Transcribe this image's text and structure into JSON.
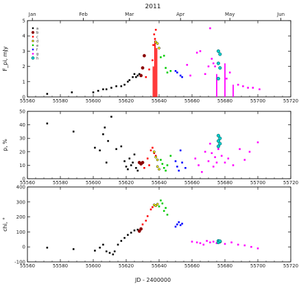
{
  "chart_data": {
    "type": "scatter",
    "title": "2011",
    "xlabel": "JD - 2400000",
    "xlim": [
      55560,
      55720
    ],
    "x_ticks": [
      55560,
      55580,
      55600,
      55620,
      55640,
      55660,
      55680,
      55700,
      55720
    ],
    "top_axis_months": [
      {
        "label": "Jan",
        "jd": 55563
      },
      {
        "label": "Feb",
        "jd": 55594
      },
      {
        "label": "Mar",
        "jd": 55622
      },
      {
        "label": "Apr",
        "jd": 55653
      },
      {
        "label": "May",
        "jd": 55683
      },
      {
        "label": "Jun",
        "jd": 55714
      }
    ],
    "legend_entries": [
      "a",
      "b",
      "c",
      "d",
      "e",
      "f",
      "g",
      "h"
    ],
    "colors": {
      "a": "#000000",
      "b": "#8b0000",
      "c": "#ff0000",
      "d": "#ffff00",
      "e": "#00cc00",
      "f": "#0000ff",
      "g": "#ff00ff",
      "h": "#00cccc"
    },
    "panels": [
      {
        "ylabel": "F_pi, mJy",
        "ylim": [
          0,
          5
        ],
        "y_ticks": [
          0,
          1,
          2,
          3,
          4,
          5
        ],
        "series": [
          {
            "name": "a",
            "points": [
              [
                55572,
                0.2
              ],
              [
                55587,
                0.3
              ],
              [
                55600,
                0.3
              ],
              [
                55603,
                0.4
              ],
              [
                55606,
                0.5
              ],
              [
                55608,
                0.5
              ],
              [
                55611,
                0.6
              ],
              [
                55614,
                0.7
              ],
              [
                55617,
                0.7
              ],
              [
                55619,
                0.8
              ],
              [
                55621,
                1.0
              ],
              [
                55622,
                1.1
              ],
              [
                55624,
                1.3
              ],
              [
                55625,
                1.5
              ],
              [
                55626,
                1.3
              ],
              [
                55627,
                1.4
              ],
              [
                55628,
                1.5
              ]
            ]
          },
          {
            "name": "b",
            "points": [
              [
                55629,
                1.4
              ],
              [
                55630,
                1.9
              ],
              [
                55631,
                2.7
              ]
            ]
          },
          {
            "name": "c",
            "points": [
              [
                55632,
                1.3
              ],
              [
                55634,
                1.8
              ],
              [
                55636,
                2.4
              ],
              [
                55636.5,
                3.4
              ],
              [
                55637,
                4.1
              ],
              [
                55637.5,
                3.8
              ],
              [
                55638,
                4.4
              ]
            ],
            "bars": [
              [
                55636.5,
                2.0
              ],
              [
                55637.5,
                3.7
              ],
              [
                55638.5,
                3.2
              ]
            ]
          },
          {
            "name": "d",
            "points": [
              [
                55638,
                3.6
              ],
              [
                55639,
                3.5
              ],
              [
                55640,
                3.2
              ]
            ]
          },
          {
            "name": "e",
            "points": [
              [
                55641,
                2.6
              ],
              [
                55643,
                2.7
              ],
              [
                55644,
                1.9
              ],
              [
                55645,
                1.6
              ],
              [
                55647,
                1.7
              ]
            ]
          },
          {
            "name": "f",
            "points": [
              [
                55650,
                1.7
              ],
              [
                55651,
                1.6
              ],
              [
                55653,
                1.4
              ],
              [
                55654,
                1.3
              ]
            ]
          },
          {
            "name": "g",
            "points": [
              [
                55657,
                2.1
              ],
              [
                55659,
                1.4
              ],
              [
                55663,
                2.9
              ],
              [
                55665,
                3.0
              ],
              [
                55668,
                1.5
              ],
              [
                55670,
                2.0
              ],
              [
                55671,
                4.5
              ],
              [
                55672,
                2.5
              ],
              [
                55673,
                2.2
              ],
              [
                55674,
                2.0
              ],
              [
                55681,
                1.2
              ],
              [
                55683,
                1.6
              ],
              [
                55688,
                0.8
              ],
              [
                55691,
                0.7
              ],
              [
                55694,
                0.6
              ],
              [
                55697,
                0.6
              ],
              [
                55701,
                0.5
              ]
            ],
            "bars": [
              [
                55675,
                1.5
              ],
              [
                55680,
                2.2
              ],
              [
                55685,
                0.8
              ]
            ]
          },
          {
            "name": "h",
            "points": [
              [
                55676,
                3.0
              ],
              [
                55677,
                2.8
              ],
              [
                55676,
                2.2
              ],
              [
                55677,
                1.9
              ],
              [
                55676,
                1.2
              ]
            ]
          }
        ]
      },
      {
        "ylabel": "p, %",
        "ylim": [
          0,
          50
        ],
        "y_ticks": [
          0,
          10,
          20,
          30,
          40,
          50
        ],
        "series": [
          {
            "name": "a",
            "points": [
              [
                55572,
                41
              ],
              [
                55588,
                35
              ],
              [
                55601,
                23
              ],
              [
                55604,
                21
              ],
              [
                55606,
                33
              ],
              [
                55607,
                38
              ],
              [
                55608,
                12
              ],
              [
                55609,
                28
              ],
              [
                55611,
                46
              ],
              [
                55614,
                22
              ],
              [
                55617,
                24
              ],
              [
                55619,
                13
              ],
              [
                55620,
                9
              ],
              [
                55621,
                7
              ],
              [
                55622,
                15
              ],
              [
                55623,
                10
              ],
              [
                55624,
                12
              ],
              [
                55625,
                18
              ],
              [
                55626,
                8
              ],
              [
                55627,
                6
              ]
            ]
          },
          {
            "name": "b",
            "points": [
              [
                55628,
                12
              ],
              [
                55629,
                11
              ],
              [
                55630,
                12
              ]
            ]
          },
          {
            "name": "c",
            "points": [
              [
                55631,
                8
              ],
              [
                55633,
                15
              ],
              [
                55634,
                10
              ],
              [
                55635,
                21
              ],
              [
                55636,
                23
              ],
              [
                55637,
                19
              ],
              [
                55638,
                17
              ]
            ]
          },
          {
            "name": "d",
            "points": [
              [
                55637,
                20
              ],
              [
                55638,
                16
              ],
              [
                55639,
                14
              ],
              [
                55639,
                9
              ],
              [
                55640,
                7
              ]
            ]
          },
          {
            "name": "e",
            "points": [
              [
                55641,
                14
              ],
              [
                55642,
                11
              ],
              [
                55643,
                8
              ],
              [
                55644,
                6
              ],
              [
                55645,
                10
              ],
              [
                55647,
                17
              ]
            ]
          },
          {
            "name": "f",
            "points": [
              [
                55650,
                13
              ],
              [
                55651,
                9
              ],
              [
                55652,
                6
              ],
              [
                55653,
                21
              ],
              [
                55654,
                12
              ],
              [
                55656,
                8
              ]
            ]
          },
          {
            "name": "g",
            "points": [
              [
                55662,
                15
              ],
              [
                55664,
                10
              ],
              [
                55666,
                5
              ],
              [
                55668,
                20
              ],
              [
                55670,
                13
              ],
              [
                55671,
                26
              ],
              [
                55672,
                19
              ],
              [
                55673,
                9
              ],
              [
                55674,
                16
              ],
              [
                55675,
                12
              ],
              [
                55676,
                22
              ],
              [
                55678,
                17
              ],
              [
                55680,
                12
              ],
              [
                55682,
                15
              ],
              [
                55685,
                10
              ],
              [
                55689,
                22
              ],
              [
                55692,
                14
              ],
              [
                55695,
                20
              ],
              [
                55700,
                27
              ]
            ]
          },
          {
            "name": "h",
            "points": [
              [
                55676,
                32
              ],
              [
                55677,
                30
              ],
              [
                55676,
                28
              ],
              [
                55677,
                26
              ],
              [
                55676,
                24
              ]
            ]
          }
        ]
      },
      {
        "ylabel": "chi, °",
        "ylim": [
          -100,
          400
        ],
        "y_ticks": [
          -100,
          0,
          100,
          200,
          300,
          400
        ],
        "series": [
          {
            "name": "a",
            "points": [
              [
                55572,
                -5
              ],
              [
                55588,
                -15
              ],
              [
                55601,
                -25
              ],
              [
                55604,
                -5
              ],
              [
                55606,
                15
              ],
              [
                55608,
                -30
              ],
              [
                55610,
                -40
              ],
              [
                55612,
                -50
              ],
              [
                55613,
                -30
              ],
              [
                55615,
                15
              ],
              [
                55617,
                40
              ],
              [
                55619,
                60
              ],
              [
                55621,
                80
              ],
              [
                55623,
                95
              ],
              [
                55625,
                110
              ],
              [
                55627,
                115
              ]
            ]
          },
          {
            "name": "b",
            "points": [
              [
                55628,
                105
              ],
              [
                55629,
                120
              ]
            ]
          },
          {
            "name": "c",
            "points": [
              [
                55630,
                150
              ],
              [
                55632,
                175
              ],
              [
                55633,
                205
              ],
              [
                55635,
                250
              ],
              [
                55636,
                265
              ]
            ]
          },
          {
            "name": "d",
            "points": [
              [
                55637,
                280
              ],
              [
                55638,
                275
              ],
              [
                55639,
                285
              ]
            ]
          },
          {
            "name": "e",
            "points": [
              [
                55640,
                270
              ],
              [
                55641,
                310
              ],
              [
                55642,
                290
              ],
              [
                55643,
                240
              ],
              [
                55644,
                260
              ],
              [
                55645,
                215
              ]
            ]
          },
          {
            "name": "f",
            "points": [
              [
                55650,
                135
              ],
              [
                55651,
                150
              ],
              [
                55652,
                165
              ],
              [
                55653,
                145
              ],
              [
                55654,
                155
              ]
            ]
          },
          {
            "name": "g",
            "points": [
              [
                55660,
                35
              ],
              [
                55663,
                30
              ],
              [
                55665,
                25
              ],
              [
                55667,
                15
              ],
              [
                55669,
                40
              ],
              [
                55671,
                30
              ],
              [
                55673,
                35
              ],
              [
                55675,
                25
              ],
              [
                55680,
                20
              ],
              [
                55684,
                30
              ],
              [
                55688,
                15
              ],
              [
                55692,
                10
              ],
              [
                55696,
                0
              ],
              [
                55700,
                -10
              ]
            ]
          },
          {
            "name": "h",
            "points": [
              [
                55676,
                40
              ],
              [
                55677,
                35
              ],
              [
                55676,
                30
              ],
              [
                55677,
                38
              ]
            ]
          }
        ]
      }
    ]
  }
}
